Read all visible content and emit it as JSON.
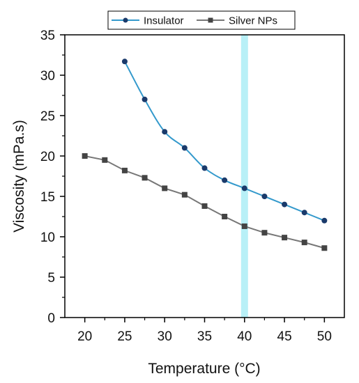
{
  "chart_data": {
    "type": "line",
    "xlabel": "Temperature (°C)",
    "ylabel": "Viscosity (mPa.s)",
    "xlim": [
      17.5,
      52.5
    ],
    "ylim": [
      0,
      35
    ],
    "x_ticks": [
      20,
      25,
      30,
      35,
      40,
      45,
      50
    ],
    "y_ticks": [
      0,
      5,
      10,
      15,
      20,
      25,
      30,
      35
    ],
    "highlight_x": 40,
    "legend_position": "top",
    "grid": false,
    "series": [
      {
        "name": "Insulator",
        "color": "#3399cc",
        "marker": "circle",
        "marker_color": "#1a3a6b",
        "x": [
          25,
          27.5,
          30,
          32.5,
          35,
          37.5,
          40,
          42.5,
          45,
          47.5,
          50
        ],
        "y": [
          31.7,
          27.0,
          23.0,
          21.0,
          18.5,
          17.0,
          16.0,
          15.0,
          14.0,
          13.0,
          12.0
        ]
      },
      {
        "name": "Silver NPs",
        "color": "#777777",
        "marker": "square",
        "marker_color": "#444444",
        "x": [
          20,
          22.5,
          25,
          27.5,
          30,
          32.5,
          35,
          37.5,
          40,
          42.5,
          45,
          47.5,
          50
        ],
        "y": [
          20.0,
          19.5,
          18.2,
          17.3,
          16.0,
          15.2,
          13.8,
          12.5,
          11.3,
          10.5,
          9.9,
          9.3,
          8.6
        ]
      }
    ]
  },
  "colors": {
    "highlight_band": "#b8f0f7",
    "axis": "#000000"
  }
}
